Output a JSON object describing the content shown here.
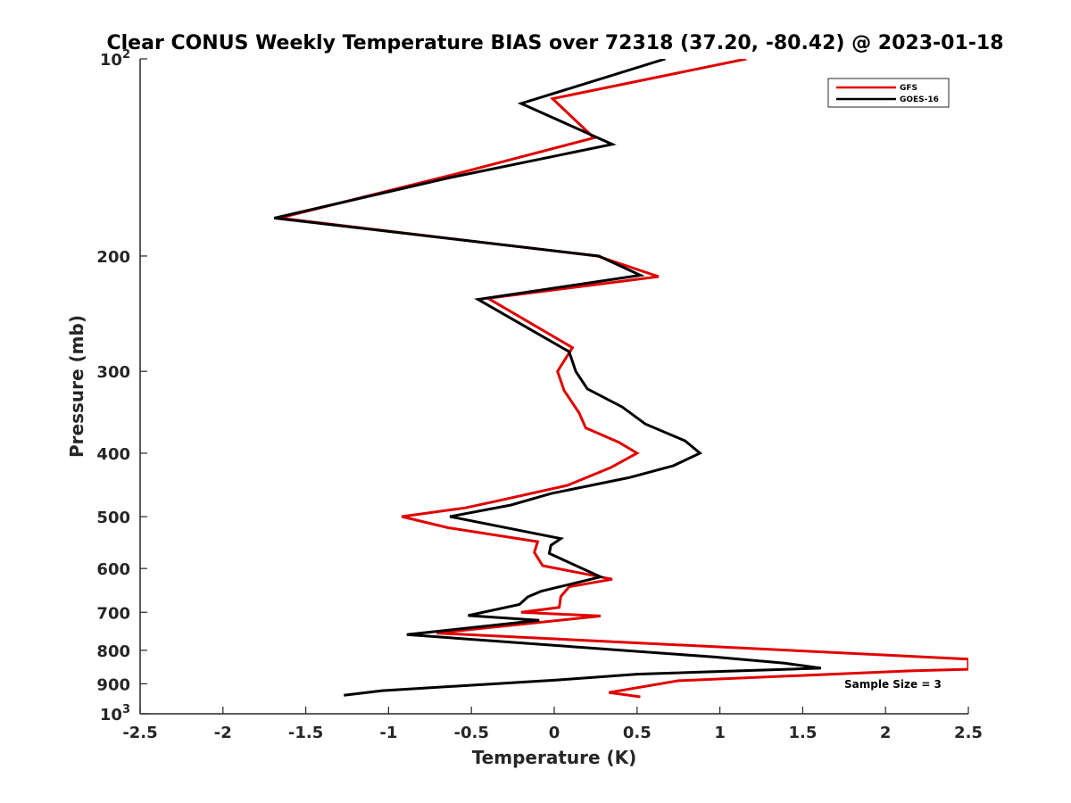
{
  "chart_data": {
    "type": "line",
    "title": "Clear CONUS Weekly Temperature BIAS over 72318 (37.20, -80.42) @ 2023-01-18",
    "xlabel": "Temperature (K)",
    "ylabel": "Pressure (mb)",
    "xlim": [
      -2.5,
      2.5
    ],
    "ylim": [
      100,
      1000
    ],
    "y_scale": "log",
    "y_reversed": true,
    "grid": false,
    "legend_position": "top-right",
    "x_ticks": [
      {
        "value": -2.5,
        "label": "-2.5"
      },
      {
        "value": -2,
        "label": "-2"
      },
      {
        "value": -1.5,
        "label": "-1.5"
      },
      {
        "value": -1,
        "label": "-1"
      },
      {
        "value": -0.5,
        "label": "-0.5"
      },
      {
        "value": 0,
        "label": "0"
      },
      {
        "value": 0.5,
        "label": "0.5"
      },
      {
        "value": 1,
        "label": "1"
      },
      {
        "value": 1.5,
        "label": "1.5"
      },
      {
        "value": 2,
        "label": "2"
      },
      {
        "value": 2.5,
        "label": "2.5"
      }
    ],
    "y_ticks": [
      {
        "value": 100,
        "label": "10",
        "sup": "2"
      },
      {
        "value": 200,
        "label": "200"
      },
      {
        "value": 300,
        "label": "300"
      },
      {
        "value": 400,
        "label": "400"
      },
      {
        "value": 500,
        "label": "500"
      },
      {
        "value": 600,
        "label": "600"
      },
      {
        "value": 700,
        "label": "700"
      },
      {
        "value": 800,
        "label": "800"
      },
      {
        "value": 900,
        "label": "900"
      },
      {
        "value": 1000,
        "label": "10",
        "sup": "3"
      }
    ],
    "annotation": "Sample Size = 3",
    "series": [
      {
        "name": "GFS",
        "color": "#e00000",
        "points": [
          [
            1.16,
            100
          ],
          [
            -0.01,
            115
          ],
          [
            0.24,
            132
          ],
          [
            -0.6,
            150
          ],
          [
            -1.66,
            175
          ],
          [
            0.26,
            200
          ],
          [
            0.63,
            215
          ],
          [
            -0.4,
            232
          ],
          [
            0.11,
            276
          ],
          [
            0.02,
            300
          ],
          [
            0.06,
            321
          ],
          [
            0.15,
            347
          ],
          [
            0.19,
            366
          ],
          [
            0.39,
            385
          ],
          [
            0.5,
            400
          ],
          [
            0.34,
            421
          ],
          [
            0.08,
            448
          ],
          [
            -0.34,
            473
          ],
          [
            -0.54,
            485
          ],
          [
            -0.92,
            500
          ],
          [
            -0.64,
            520
          ],
          [
            -0.1,
            546
          ],
          [
            -0.12,
            567
          ],
          [
            -0.07,
            594
          ],
          [
            0.35,
            623
          ],
          [
            0.09,
            640
          ],
          [
            0.04,
            662
          ],
          [
            0.03,
            688
          ],
          [
            -0.2,
            700
          ],
          [
            0.28,
            709
          ],
          [
            -0.71,
            753
          ],
          [
            2.5,
            825
          ],
          [
            2.5,
            855
          ],
          [
            2.15,
            860
          ],
          [
            0.75,
            890
          ],
          [
            0.33,
            928
          ],
          [
            0.52,
            942
          ]
        ]
      },
      {
        "name": "GOES-16",
        "color": "#000000",
        "points": [
          [
            0.67,
            100
          ],
          [
            -0.2,
            117
          ],
          [
            0.35,
            135
          ],
          [
            -0.64,
            152
          ],
          [
            -1.69,
            175
          ],
          [
            0.27,
            200
          ],
          [
            0.52,
            214
          ],
          [
            -0.46,
            233
          ],
          [
            0.09,
            280
          ],
          [
            0.13,
            300
          ],
          [
            0.2,
            319
          ],
          [
            0.41,
            340
          ],
          [
            0.55,
            361
          ],
          [
            0.79,
            383
          ],
          [
            0.88,
            400
          ],
          [
            0.72,
            418
          ],
          [
            0.45,
            436
          ],
          [
            -0.02,
            461
          ],
          [
            -0.26,
            480
          ],
          [
            -0.63,
            500
          ],
          [
            0.04,
            540
          ],
          [
            -0.02,
            553
          ],
          [
            -0.03,
            569
          ],
          [
            0.28,
            618
          ],
          [
            -0.08,
            650
          ],
          [
            -0.16,
            663
          ],
          [
            -0.21,
            681
          ],
          [
            -0.52,
            708
          ],
          [
            -0.09,
            720
          ],
          [
            -0.89,
            757
          ],
          [
            0.97,
            819
          ],
          [
            1.39,
            837
          ],
          [
            1.61,
            852
          ],
          [
            0.5,
            870
          ],
          [
            0.02,
            888
          ],
          [
            -1.04,
            922
          ],
          [
            -1.27,
            937
          ]
        ]
      }
    ]
  }
}
